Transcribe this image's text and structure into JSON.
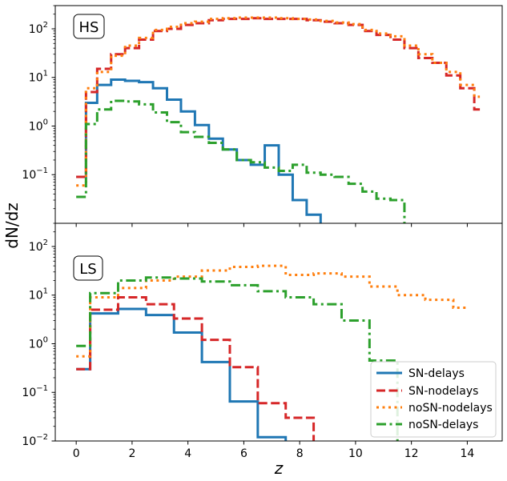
{
  "figure": {
    "ylabel": "dN/dz",
    "xlabel": "z",
    "x_ticks": [
      "0",
      "2",
      "4",
      "6",
      "8",
      "10",
      "12",
      "14"
    ],
    "legend_labels": [
      "SN-delays",
      "SN-nodelays",
      "noSN-nodelays",
      "noSN-delays"
    ]
  },
  "chart_data": [
    {
      "type": "line",
      "panel": "HS",
      "step": true,
      "xlim": [
        -0.75,
        15.25
      ],
      "ylim": [
        0.01,
        300
      ],
      "yscale": "log",
      "y_ticks": [
        0.1,
        1,
        10,
        100
      ],
      "y_tick_labels": [
        "10^{-1}",
        "10^{0}",
        "10^{1}",
        "10^{2}"
      ],
      "x_ticks": [
        0,
        2,
        4,
        6,
        8,
        10,
        12,
        14
      ],
      "series": [
        {
          "name": "SN-delays",
          "color": "#1f77b4",
          "dash": "solid",
          "x": [
            0,
            0.25,
            0.35,
            0.75,
            1.25,
            1.75,
            2.25,
            2.75,
            3.25,
            3.75,
            4.25,
            4.75,
            5.25,
            5.75,
            6.25,
            6.75,
            7.25,
            7.75,
            8.25,
            8.75,
            9.25
          ],
          "y": [
            0.09,
            0.09,
            3.0,
            7.0,
            9.0,
            8.5,
            8.0,
            6.0,
            3.5,
            2.0,
            1.05,
            0.55,
            0.33,
            0.2,
            0.16,
            0.4,
            0.1,
            0.03,
            0.015,
            0.009,
            0.009
          ]
        },
        {
          "name": "SN-nodelays",
          "color": "#d62728",
          "dash": "dashed",
          "x": [
            0,
            0.25,
            0.35,
            0.75,
            1.25,
            1.75,
            2.25,
            2.75,
            3.25,
            3.75,
            4.25,
            4.75,
            5.25,
            5.75,
            6.25,
            6.75,
            7.25,
            7.75,
            8.25,
            8.75,
            9.25,
            9.75,
            10.25,
            10.75,
            11.25,
            11.75,
            12.25,
            12.75,
            13.25,
            13.75,
            14.25,
            14.45
          ],
          "y": [
            0.09,
            0.09,
            5.0,
            15,
            30,
            40,
            60,
            90,
            100,
            120,
            130,
            150,
            160,
            160,
            165,
            160,
            160,
            160,
            150,
            140,
            130,
            120,
            90,
            75,
            60,
            40,
            25,
            20,
            11,
            6,
            2.2,
            2.2
          ]
        },
        {
          "name": "noSN-nodelays",
          "color": "#ff7f0e",
          "dash": "dotted",
          "x": [
            0,
            0.25,
            0.35,
            0.75,
            1.25,
            1.75,
            2.25,
            2.75,
            3.25,
            3.75,
            4.25,
            4.75,
            5.25,
            5.75,
            6.25,
            6.75,
            7.25,
            7.75,
            8.25,
            8.75,
            9.25,
            9.75,
            10.25,
            10.75,
            11.25,
            11.75,
            12.25,
            12.75,
            13.25,
            13.75,
            14.25,
            14.45
          ],
          "y": [
            0.06,
            0.06,
            6.0,
            13,
            28,
            45,
            65,
            95,
            110,
            130,
            140,
            160,
            165,
            170,
            170,
            170,
            165,
            160,
            155,
            145,
            135,
            125,
            95,
            80,
            70,
            45,
            30,
            20,
            13,
            7,
            4,
            4
          ]
        },
        {
          "name": "noSN-delays",
          "color": "#2ca02c",
          "dash": "dashdot",
          "x": [
            0,
            0.25,
            0.35,
            0.75,
            1.25,
            1.75,
            2.25,
            2.75,
            3.25,
            3.75,
            4.25,
            4.75,
            5.25,
            5.75,
            6.25,
            6.75,
            7.25,
            7.75,
            8.25,
            8.75,
            9.25,
            9.75,
            10.25,
            10.75,
            11.25,
            11.75
          ],
          "y": [
            0.035,
            0.035,
            1.1,
            2.2,
            3.3,
            3.2,
            2.8,
            1.9,
            1.2,
            0.75,
            0.6,
            0.45,
            0.33,
            0.2,
            0.18,
            0.14,
            0.12,
            0.16,
            0.11,
            0.1,
            0.09,
            0.065,
            0.045,
            0.032,
            0.03,
            0.009
          ]
        }
      ]
    },
    {
      "type": "line",
      "panel": "LS",
      "step": true,
      "xlim": [
        -0.75,
        15.25
      ],
      "ylim": [
        0.01,
        300
      ],
      "yscale": "log",
      "y_ticks": [
        0.01,
        0.1,
        1,
        10,
        100
      ],
      "y_tick_labels": [
        "10^{-2}",
        "10^{-1}",
        "10^{0}",
        "10^{1}",
        "10^{2}"
      ],
      "x_ticks": [
        0,
        2,
        4,
        6,
        8,
        10,
        12,
        14
      ],
      "series": [
        {
          "name": "SN-delays",
          "color": "#1f77b4",
          "dash": "solid",
          "x": [
            0,
            0.5,
            1.5,
            2.5,
            3.5,
            4.5,
            5.5,
            6.5,
            7.5
          ],
          "y": [
            0.3,
            4.2,
            5.2,
            3.9,
            1.7,
            0.42,
            0.065,
            0.012,
            0.006
          ]
        },
        {
          "name": "SN-nodelays",
          "color": "#d62728",
          "dash": "dashed",
          "x": [
            0,
            0.5,
            1.5,
            2.5,
            3.5,
            4.5,
            5.5,
            6.5,
            7.5,
            8.5,
            9.5
          ],
          "y": [
            0.3,
            5.0,
            9.0,
            6.5,
            3.3,
            1.2,
            0.33,
            0.06,
            0.03,
            0.008,
            0.008
          ]
        },
        {
          "name": "noSN-nodelays",
          "color": "#ff7f0e",
          "dash": "dotted",
          "x": [
            0,
            0.5,
            1.5,
            2.5,
            3.5,
            4.5,
            5.5,
            6.5,
            7.5,
            8.5,
            9.5,
            10.5,
            11.5,
            12.5,
            13.5,
            14.0
          ],
          "y": [
            0.55,
            9.0,
            14,
            20,
            24,
            32,
            38,
            40,
            26,
            28,
            24,
            15,
            10,
            8,
            5.5,
            5.5
          ]
        },
        {
          "name": "noSN-delays",
          "color": "#2ca02c",
          "dash": "dashdot",
          "x": [
            0,
            0.5,
            1.5,
            2.5,
            3.5,
            4.5,
            5.5,
            6.5,
            7.5,
            8.5,
            9.5,
            10.5,
            11.5
          ],
          "y": [
            0.9,
            11,
            20,
            23,
            22,
            19,
            16,
            12,
            9,
            6.5,
            3.0,
            0.45,
            0.009
          ]
        }
      ]
    }
  ]
}
